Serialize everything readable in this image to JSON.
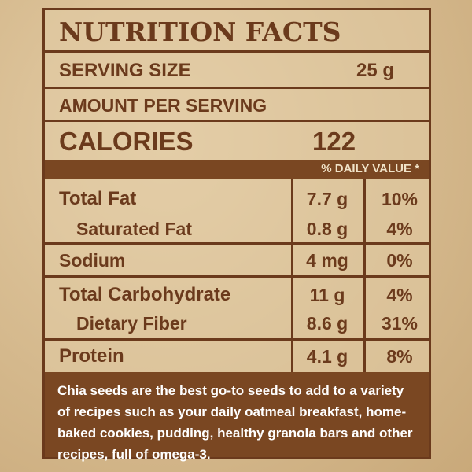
{
  "label": {
    "title": "NUTRITION FACTS",
    "serving_size_label": "SERVING SIZE",
    "serving_size_value": "25 g",
    "amount_per_serving": "AMOUNT PER SERVING",
    "calories_label": "CALORIES",
    "calories_value": "122",
    "daily_value_header": "% DAILY VALUE *",
    "nutrients": [
      {
        "name": "Total Fat",
        "amount": "7.7 g",
        "dv": "10%"
      },
      {
        "name": "Saturated Fat",
        "amount": "0.8 g",
        "dv": "4%"
      },
      {
        "name": "Sodium",
        "amount": "4 mg",
        "dv": "0%"
      },
      {
        "name": "Total Carbohydrate",
        "amount": "11 g",
        "dv": "4%"
      },
      {
        "name": "Dietary Fiber",
        "amount": "8.6 g",
        "dv": "31%"
      },
      {
        "name": "Protein",
        "amount": "4.1 g",
        "dv": "8%"
      }
    ],
    "description": "Chia seeds are the best go-to seeds to add to a variety of recipes such as your daily oatmeal breakfast, home-baked cookies, pudding, healthy granola bars and other recipes, full of omega-3."
  },
  "colors": {
    "brown": "#6b3a1c",
    "bar_brown": "#7a4722",
    "paper": "#d8bd92"
  }
}
